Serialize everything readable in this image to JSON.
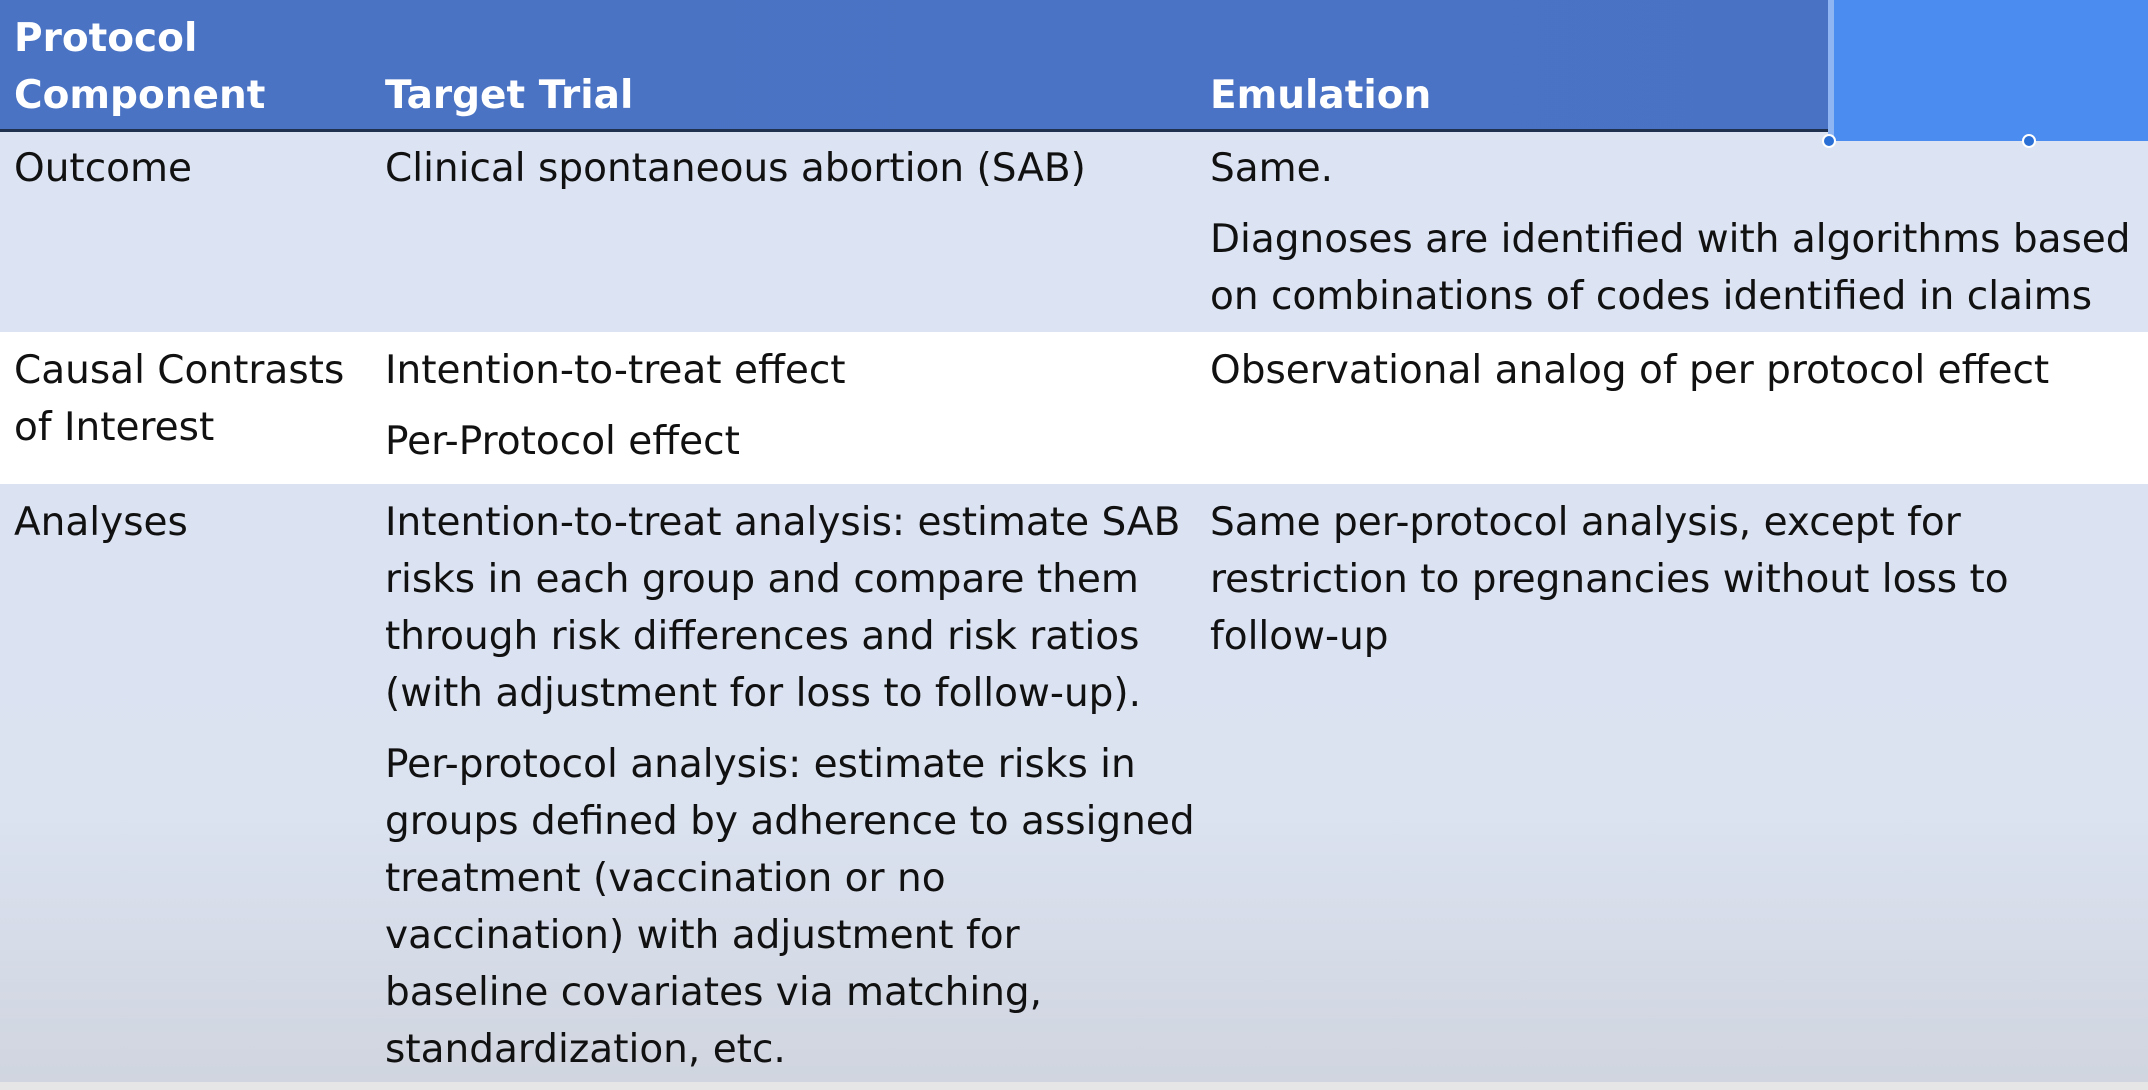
{
  "colors": {
    "header_bg": "#4a73c4",
    "header_text": "#ffffff",
    "row_band": "#dce3f2",
    "row_white": "#ffffff",
    "selection": "#4a8cf0"
  },
  "table": {
    "headers": {
      "component_line1": "Protocol",
      "component_line2": "Component",
      "target": "Target Trial",
      "emulation": "Emulation"
    },
    "rows": [
      {
        "component": [
          "Outcome"
        ],
        "target": [
          "Clinical spontaneous abortion (SAB)"
        ],
        "emulation": [
          "Same.",
          "Diagnoses are identified with algorithms based",
          "on combinations of codes identified in claims"
        ]
      },
      {
        "component": [
          "Causal Contrasts",
          "of Interest"
        ],
        "target": [
          "Intention-to-treat effect",
          "Per-Protocol effect"
        ],
        "emulation": [
          "Observational analog of per protocol effect"
        ]
      },
      {
        "component": [
          "Analyses"
        ],
        "target": [
          "Intention-to-treat analysis: estimate SAB",
          "risks in each group and compare them",
          "through risk differences and risk ratios",
          "(with adjustment for loss to follow-up).",
          "Per-protocol analysis: estimate risks in",
          "groups defined by adherence to assigned",
          "treatment (vaccination or no",
          "vaccination) with adjustment for",
          "baseline covariates via matching,",
          "standardization, etc."
        ],
        "emulation": [
          "Same per-protocol analysis, except for",
          "restriction to pregnancies without loss to",
          "follow-up"
        ]
      }
    ]
  }
}
